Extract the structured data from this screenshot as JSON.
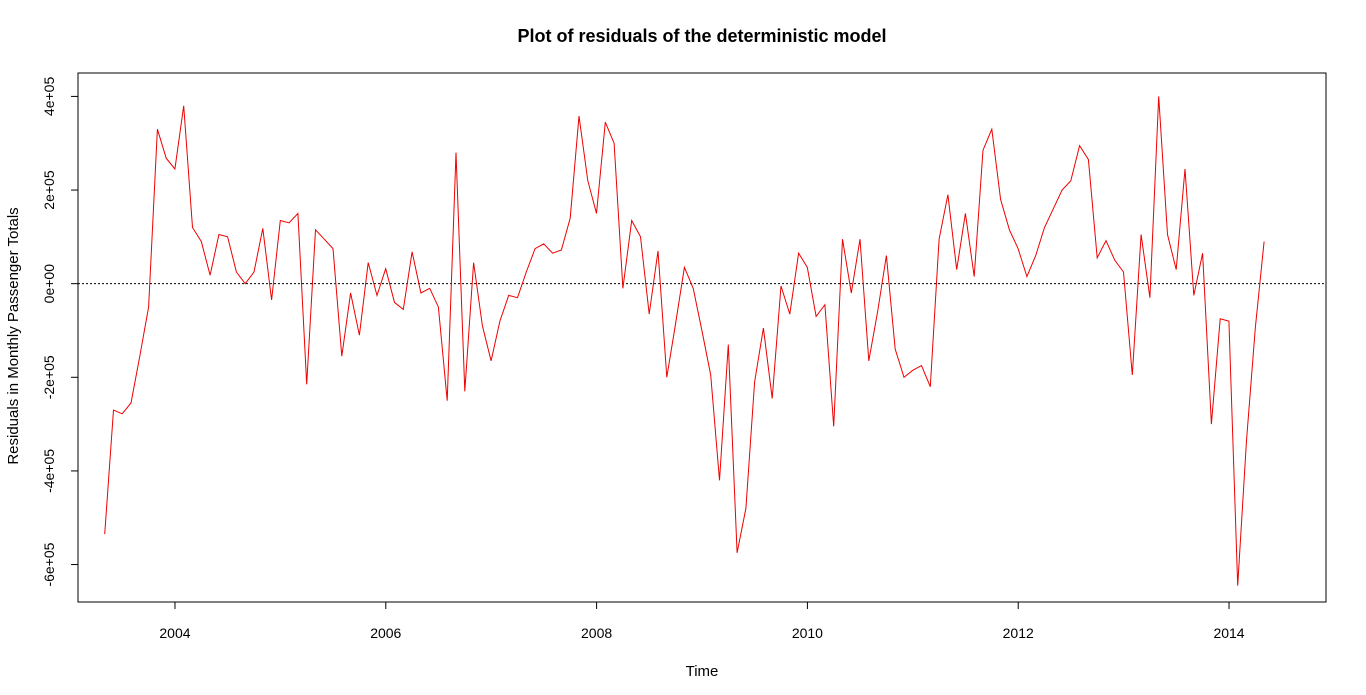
{
  "chart_data": {
    "type": "line",
    "title": "Plot of residuals of the deterministic model",
    "xlabel": "Time",
    "ylabel": "Residuals in Monthly Passenger Totals",
    "xlim": [
      2003.08,
      2014.92
    ],
    "ylim": [
      -680000,
      450000
    ],
    "x_ticks": [
      2004,
      2006,
      2008,
      2010,
      2012,
      2014
    ],
    "x_tick_labels": [
      "2004",
      "2006",
      "2008",
      "2010",
      "2012",
      "2014"
    ],
    "y_ticks": [
      -600000,
      -400000,
      -200000,
      0,
      200000,
      400000
    ],
    "y_tick_labels": [
      "-6e+05",
      "-4e+05",
      "-2e+05",
      "0e+00",
      "2e+05",
      "4e+05"
    ],
    "reference_line": {
      "y": 0,
      "style": "dotted",
      "color": "#000000"
    },
    "series": [
      {
        "color": "#ee0000",
        "x_start": 2003.333,
        "x_step": 0.08333,
        "values": [
          -535000,
          -270000,
          -278000,
          -255000,
          -155000,
          -50000,
          330000,
          268000,
          245000,
          380000,
          120000,
          90000,
          18000,
          105000,
          100000,
          25000,
          0,
          25000,
          118000,
          -35000,
          135000,
          130000,
          150000,
          -215000,
          115000,
          95000,
          75000,
          -155000,
          -20000,
          -110000,
          45000,
          -25000,
          32000,
          -40000,
          -55000,
          68000,
          -20000,
          -10000,
          -50000,
          -250000,
          280000,
          -230000,
          45000,
          -90000,
          -165000,
          -80000,
          -25000,
          -30000,
          25000,
          75000,
          85000,
          65000,
          72000,
          140000,
          358000,
          220000,
          150000,
          345000,
          300000,
          -10000,
          135000,
          100000,
          -65000,
          70000,
          -200000,
          -85000,
          35000,
          -10000,
          -100000,
          -195000,
          -420000,
          -130000,
          -575000,
          -480000,
          -210000,
          -95000,
          -245000,
          -5000,
          -65000,
          65000,
          35000,
          -70000,
          -45000,
          -305000,
          95000,
          -20000,
          95000,
          -165000,
          -60000,
          60000,
          -140000,
          -200000,
          -185000,
          -175000,
          -220000,
          95000,
          190000,
          30000,
          150000,
          15000,
          285000,
          330000,
          180000,
          115000,
          75000,
          15000,
          60000,
          120000,
          160000,
          200000,
          220000,
          295000,
          265000,
          55000,
          92000,
          50000,
          25000,
          -195000,
          105000,
          -30000,
          400000,
          105000,
          30000,
          245000,
          -25000,
          65000,
          -300000,
          -75000,
          -80000,
          -645000,
          -335000,
          -95000,
          90000
        ]
      }
    ]
  }
}
